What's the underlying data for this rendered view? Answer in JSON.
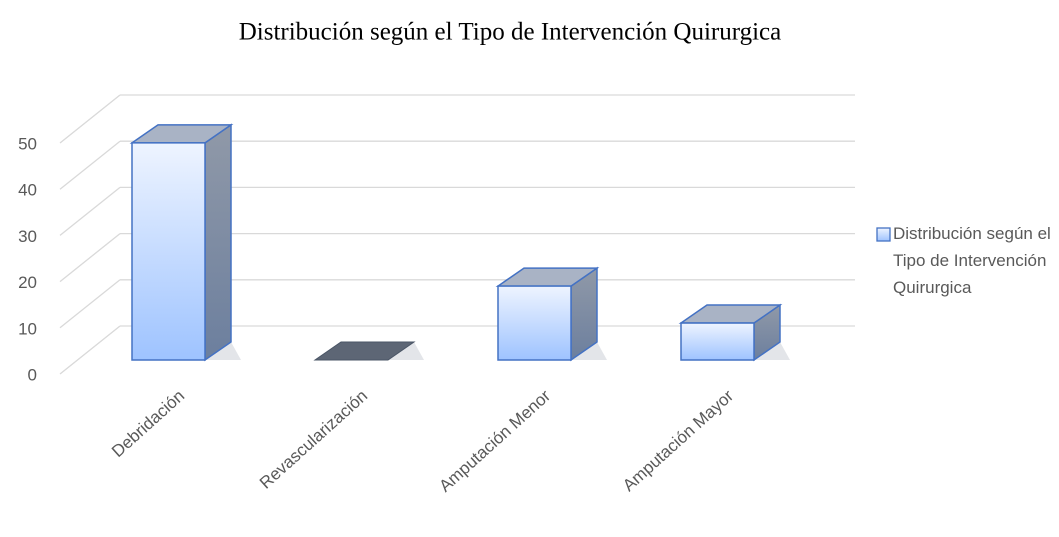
{
  "chart_data": {
    "type": "bar3d",
    "title": "Distribución según el Tipo de Intervención Quirurgica",
    "categories": [
      "Debridación",
      "Revascularización",
      "Amputación Menor",
      "Amputación Mayor"
    ],
    "series": [
      {
        "name": "Distribución según el Tipo de Intervención Quirurgica",
        "color": "#9ec3ff",
        "values": [
          47,
          0,
          16,
          8
        ]
      }
    ],
    "ylim": [
      0,
      50
    ],
    "yticks": [
      0,
      10,
      20,
      30,
      40,
      50
    ],
    "grid": true,
    "legend": "right"
  }
}
